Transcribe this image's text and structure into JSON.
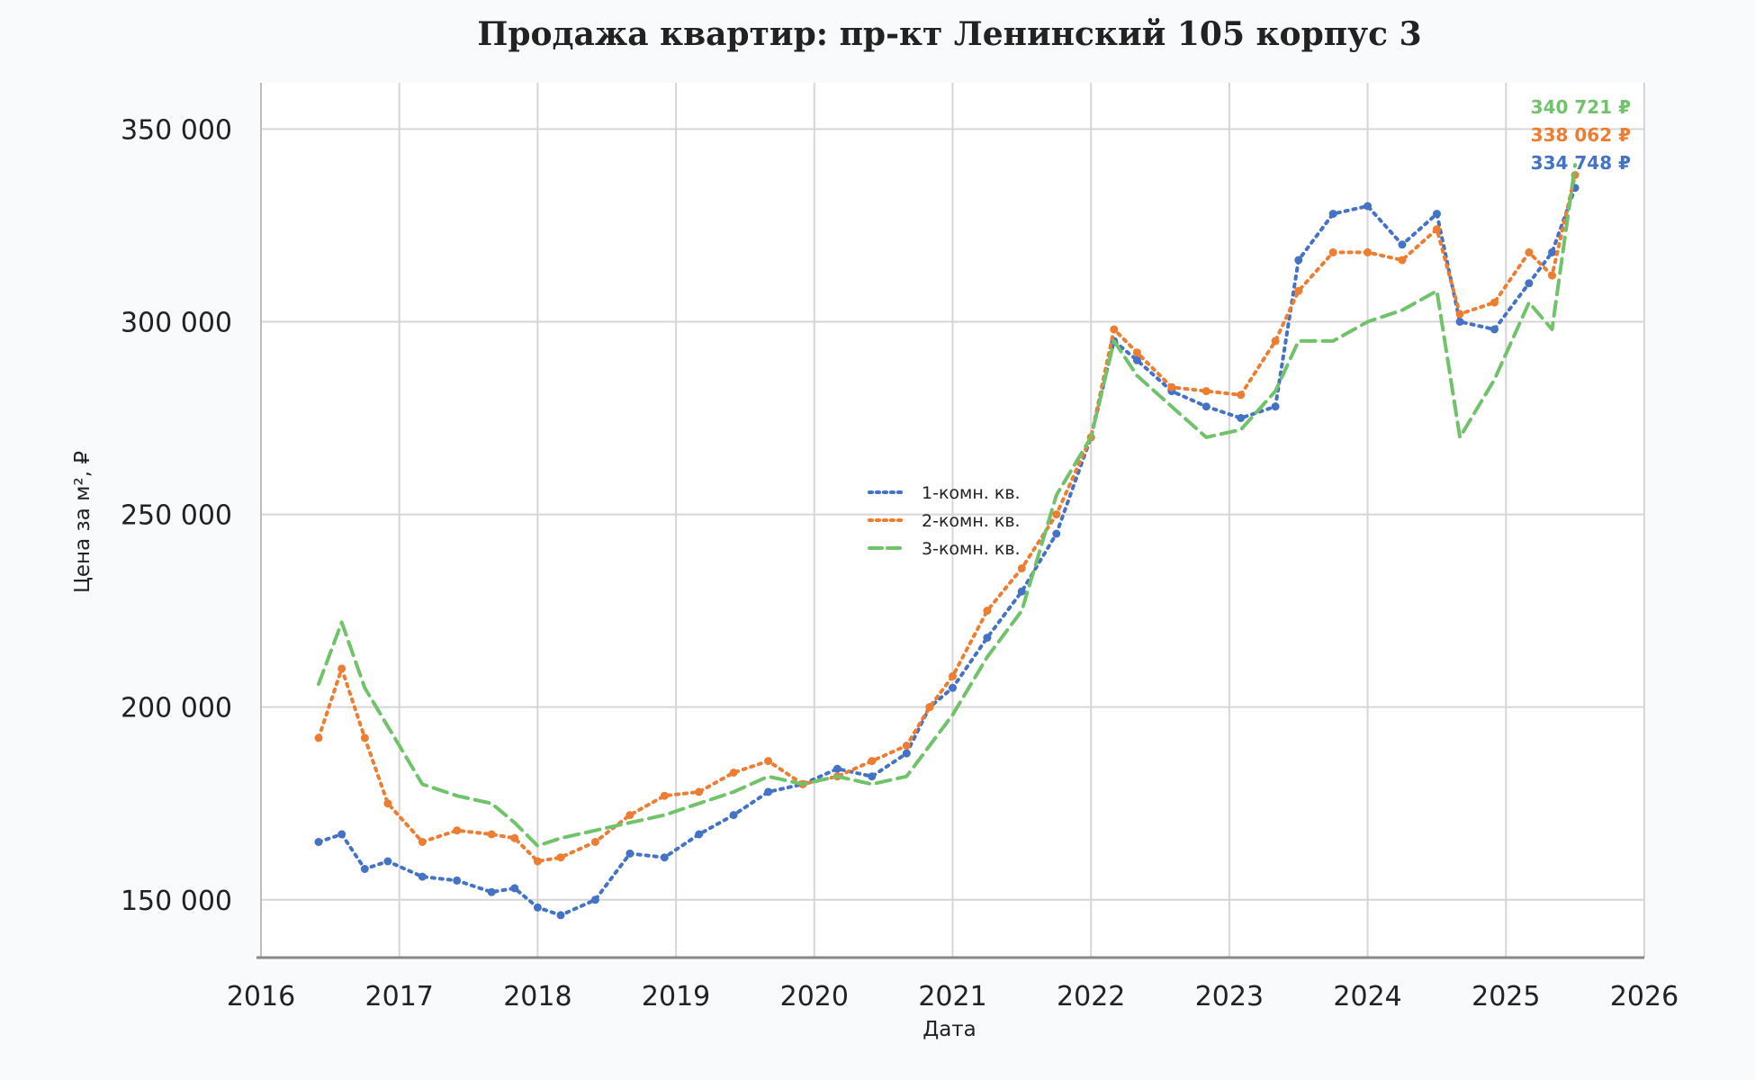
{
  "chart_data": {
    "type": "line",
    "title": "Продажа квартир: пр-кт Ленинский 105 корпус 3",
    "xlabel": "Дата",
    "ylabel": "Цена за м², ₽",
    "xlim": [
      2016,
      2026
    ],
    "ylim": [
      135000,
      362000
    ],
    "x_ticks": [
      "2016",
      "2017",
      "2018",
      "2019",
      "2020",
      "2021",
      "2022",
      "2023",
      "2024",
      "2025",
      "2026"
    ],
    "y_ticks": [
      "150 000",
      "200 000",
      "250 000",
      "300 000",
      "350 000"
    ],
    "y_tick_values": [
      150000,
      200000,
      250000,
      300000,
      350000
    ],
    "grid": true,
    "legend_position": "center",
    "series": [
      {
        "name": "1-комн. кв.",
        "color": "#4472c4",
        "style": "dotted",
        "x": [
          "2016-06",
          "2016-08",
          "2016-10",
          "2016-12",
          "2017-03",
          "2017-06",
          "2017-09",
          "2017-11",
          "2018-01",
          "2018-03",
          "2018-06",
          "2018-09",
          "2018-12",
          "2019-03",
          "2019-06",
          "2019-09",
          "2019-12",
          "2020-03",
          "2020-06",
          "2020-09",
          "2020-11",
          "2021-01",
          "2021-04",
          "2021-07",
          "2021-10",
          "2022-01",
          "2022-03",
          "2022-05",
          "2022-08",
          "2022-11",
          "2023-02",
          "2023-05",
          "2023-07",
          "2023-10",
          "2024-01",
          "2024-04",
          "2024-07",
          "2024-09",
          "2024-12",
          "2025-03",
          "2025-05",
          "2025-07"
        ],
        "values": [
          165000,
          167000,
          158000,
          160000,
          156000,
          155000,
          152000,
          153000,
          148000,
          146000,
          150000,
          162000,
          161000,
          167000,
          172000,
          178000,
          180000,
          184000,
          182000,
          188000,
          200000,
          205000,
          218000,
          230000,
          245000,
          270000,
          295000,
          290000,
          282000,
          278000,
          275000,
          278000,
          316000,
          328000,
          330000,
          320000,
          328000,
          300000,
          298000,
          310000,
          318000,
          334748
        ]
      },
      {
        "name": "2-комн. кв.",
        "color": "#ed7d31",
        "style": "dotted",
        "x": [
          "2016-06",
          "2016-08",
          "2016-10",
          "2016-12",
          "2017-03",
          "2017-06",
          "2017-09",
          "2017-11",
          "2018-01",
          "2018-03",
          "2018-06",
          "2018-09",
          "2018-12",
          "2019-03",
          "2019-06",
          "2019-09",
          "2019-12",
          "2020-03",
          "2020-06",
          "2020-09",
          "2020-11",
          "2021-01",
          "2021-04",
          "2021-07",
          "2021-10",
          "2022-01",
          "2022-03",
          "2022-05",
          "2022-08",
          "2022-11",
          "2023-02",
          "2023-05",
          "2023-07",
          "2023-10",
          "2024-01",
          "2024-04",
          "2024-07",
          "2024-09",
          "2024-12",
          "2025-03",
          "2025-05",
          "2025-07"
        ],
        "values": [
          192000,
          210000,
          192000,
          175000,
          165000,
          168000,
          167000,
          166000,
          160000,
          161000,
          165000,
          172000,
          177000,
          178000,
          183000,
          186000,
          180000,
          182000,
          186000,
          190000,
          200000,
          208000,
          225000,
          236000,
          250000,
          270000,
          298000,
          292000,
          283000,
          282000,
          281000,
          295000,
          308000,
          318000,
          318000,
          316000,
          324000,
          302000,
          305000,
          318000,
          312000,
          338062
        ]
      },
      {
        "name": "3-комн. кв.",
        "color": "#70c36a",
        "style": "dashed",
        "x": [
          "2016-06",
          "2016-08",
          "2016-10",
          "2016-12",
          "2017-03",
          "2017-06",
          "2017-09",
          "2017-11",
          "2018-01",
          "2018-03",
          "2018-06",
          "2018-09",
          "2018-12",
          "2019-03",
          "2019-06",
          "2019-09",
          "2019-12",
          "2020-03",
          "2020-06",
          "2020-09",
          "2020-11",
          "2021-01",
          "2021-04",
          "2021-07",
          "2021-10",
          "2022-01",
          "2022-03",
          "2022-05",
          "2022-08",
          "2022-11",
          "2023-02",
          "2023-05",
          "2023-07",
          "2023-10",
          "2024-01",
          "2024-04",
          "2024-07",
          "2024-09",
          "2024-12",
          "2025-03",
          "2025-05",
          "2025-07"
        ],
        "values": [
          206000,
          222000,
          205000,
          195000,
          180000,
          177000,
          175000,
          170000,
          164000,
          166000,
          168000,
          170000,
          172000,
          175000,
          178000,
          182000,
          180000,
          182000,
          180000,
          182000,
          190000,
          198000,
          213000,
          225000,
          255000,
          270000,
          295000,
          286000,
          278000,
          270000,
          272000,
          282000,
          295000,
          295000,
          300000,
          303000,
          308000,
          270000,
          285000,
          305000,
          298000,
          340721
        ]
      }
    ],
    "last_value_labels": [
      {
        "text": "340 721 ₽",
        "color": "#70c36a"
      },
      {
        "text": "338 062 ₽",
        "color": "#ed7d31"
      },
      {
        "text": "334 748 ₽",
        "color": "#4472c4"
      }
    ]
  }
}
